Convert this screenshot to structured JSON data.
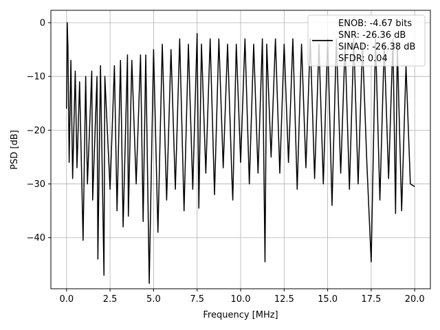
{
  "chart_data": {
    "type": "line",
    "xlabel": "Frequency [MHz]",
    "ylabel": "PSD [dB]",
    "xlim": [
      -0.9,
      20.9
    ],
    "ylim": [
      -49.5,
      2.3
    ],
    "x_ticks": [
      0.0,
      2.5,
      5.0,
      7.5,
      10.0,
      12.5,
      15.0,
      17.5,
      20.0
    ],
    "x_tick_labels": [
      "0.0",
      "2.5",
      "5.0",
      "7.5",
      "10.0",
      "12.5",
      "15.0",
      "17.5",
      "20.0"
    ],
    "y_ticks": [
      0,
      -10,
      -20,
      -30,
      -40
    ],
    "y_tick_labels": [
      "0",
      "−10",
      "−20",
      "−30",
      "−40"
    ],
    "grid": true,
    "legend_position": "top-right",
    "legend_lines": [
      "ENOB: -4.67 bits",
      "SNR: -26.36 dB",
      "SINAD: -26.38 dB",
      "SFDR: 0.04"
    ],
    "line_color": "#000000",
    "series": [
      {
        "x": [
          0.0,
          0.04,
          0.08,
          0.15,
          0.25,
          0.35,
          0.5,
          0.6,
          0.75,
          0.95,
          1.1,
          1.2,
          1.45,
          1.5,
          1.75,
          1.8,
          1.95,
          2.15,
          2.2,
          2.5,
          2.75,
          2.9,
          3.1,
          3.25,
          3.5,
          3.55,
          3.75,
          4.0,
          4.25,
          4.4,
          4.55,
          4.75,
          5.0,
          5.25,
          5.5,
          5.75,
          6.0,
          6.25,
          6.5,
          6.75,
          7.0,
          7.25,
          7.5,
          7.6,
          7.75,
          8.0,
          8.25,
          8.5,
          8.75,
          9.0,
          9.25,
          9.5,
          9.55,
          9.75,
          10.0,
          10.25,
          10.5,
          10.75,
          11.0,
          11.25,
          11.4,
          11.5,
          11.75,
          12.0,
          12.25,
          12.5,
          12.75,
          13.0,
          13.25,
          13.5,
          13.75,
          14.0,
          14.25,
          14.5,
          14.75,
          15.0,
          15.25,
          15.5,
          15.75,
          16.0,
          16.25,
          16.5,
          16.75,
          17.0,
          17.25,
          17.5,
          17.75,
          18.0,
          18.25,
          18.5,
          18.75,
          18.9,
          19.0,
          19.25,
          19.5,
          19.75,
          20.0
        ],
        "y": [
          -16,
          0,
          -4.5,
          -26,
          -7,
          -29,
          -9,
          -27,
          -11,
          -40.5,
          -10,
          -30,
          -9,
          -33,
          -10,
          -44,
          -8,
          -47,
          -10,
          -31,
          -8,
          -35,
          -7,
          -38,
          -6,
          -36,
          -7,
          -30,
          -6,
          -37,
          -6,
          -48.5,
          -5,
          -39,
          -4,
          -33,
          -5,
          -31,
          -3,
          -35,
          -4,
          -31,
          -2,
          -34.5,
          -4,
          -28,
          -3,
          -32,
          -3,
          -27,
          -4,
          -29,
          -33,
          -4,
          -26,
          -3,
          -30,
          -4,
          -28,
          -3,
          -44.5,
          -4,
          -25,
          -3,
          -28,
          -4,
          -26,
          -3,
          -31,
          -4,
          -27,
          -3,
          -29,
          -4,
          -30,
          -3,
          -34,
          -3,
          -28,
          -4,
          -31,
          -3,
          -30,
          -4,
          -26,
          -44.5,
          -3,
          -33,
          -4,
          -29,
          -3,
          -35.5,
          -4,
          -35,
          -8,
          -30,
          -30.5
        ]
      }
    ]
  }
}
